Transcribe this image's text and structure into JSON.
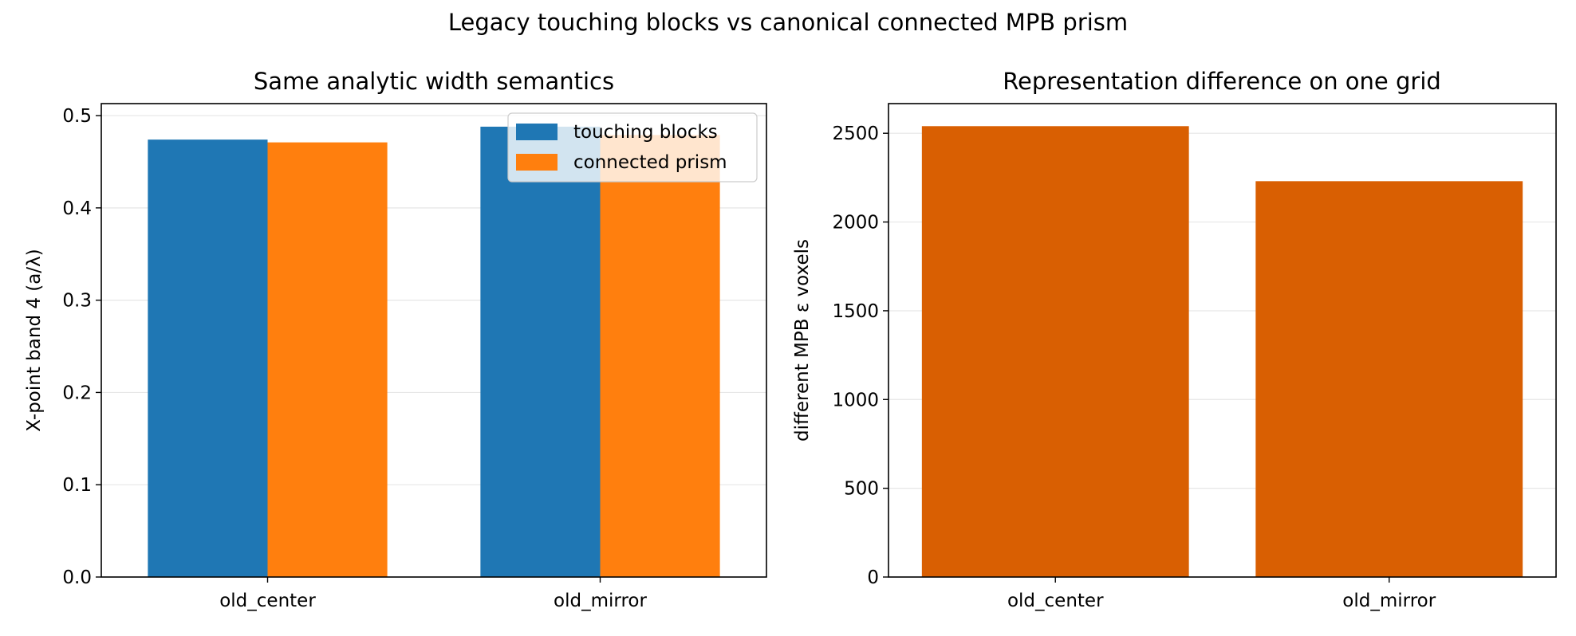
{
  "suptitle": "Legacy touching blocks vs canonical connected MPB prism",
  "chart_data": [
    {
      "type": "bar",
      "title": "Same analytic width semantics",
      "xlabel": "",
      "ylabel": "X-point band 4 (a/λ)",
      "categories": [
        "old_center",
        "old_mirror"
      ],
      "series": [
        {
          "name": "touching blocks",
          "color": "#1f77b4",
          "values": [
            0.474,
            0.488
          ]
        },
        {
          "name": "connected prism",
          "color": "#ff7f0e",
          "values": [
            0.471,
            0.479
          ]
        }
      ],
      "ylim": [
        0,
        0.513
      ],
      "yticks": [
        0.0,
        0.1,
        0.2,
        0.3,
        0.4,
        0.5
      ],
      "ytick_labels": [
        "0.0",
        "0.1",
        "0.2",
        "0.3",
        "0.4",
        "0.5"
      ],
      "grid": "y",
      "legend": "upper-right"
    },
    {
      "type": "bar",
      "title": "Representation difference on one grid",
      "xlabel": "",
      "ylabel": "different MPB ε voxels",
      "categories": [
        "old_center",
        "old_mirror"
      ],
      "series": [
        {
          "color": "#d95f02",
          "values": [
            2540,
            2230
          ]
        }
      ],
      "ylim": [
        0,
        2667
      ],
      "yticks": [
        0,
        500,
        1000,
        1500,
        2000,
        2500
      ],
      "ytick_labels": [
        "0",
        "500",
        "1000",
        "1500",
        "2000",
        "2500"
      ],
      "grid": "y",
      "legend": "none"
    }
  ]
}
